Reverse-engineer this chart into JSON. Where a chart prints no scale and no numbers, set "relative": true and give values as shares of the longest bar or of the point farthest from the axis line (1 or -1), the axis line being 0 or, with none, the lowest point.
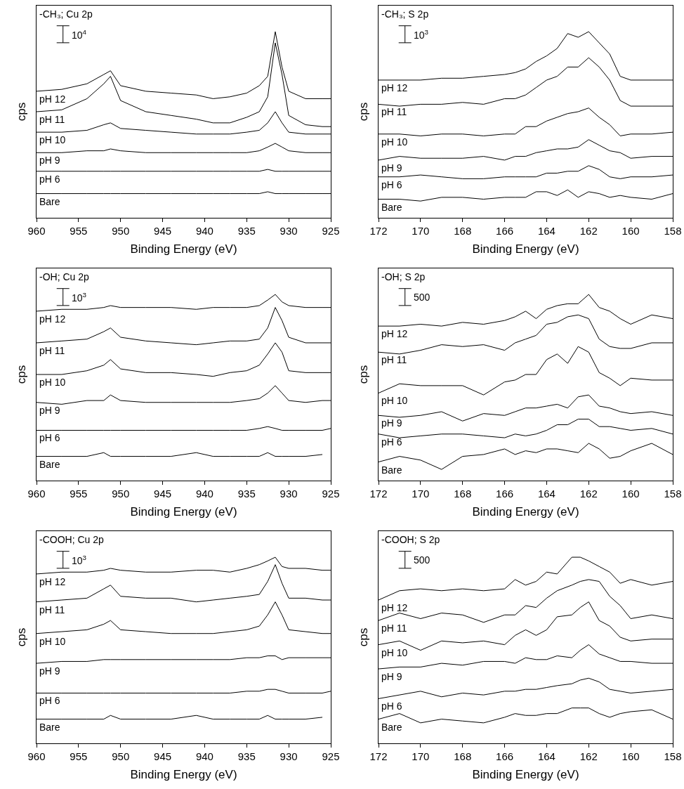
{
  "chart_data": [
    {
      "type": "line",
      "title": "-CH₃; Cu 2p",
      "xlabel": "Binding Energy (eV)",
      "ylabel": "cps",
      "relative": true,
      "xlim": [
        960,
        925
      ],
      "xticks": [
        960,
        955,
        950,
        945,
        940,
        935,
        930,
        925
      ],
      "tick_labels": "x",
      "annotations": [
        "10$^{4}$"
      ],
      "x": [
        960,
        957,
        954,
        952,
        951.2,
        950,
        947,
        944,
        941,
        939,
        937,
        935,
        933.5,
        932.5,
        931.6,
        930.8,
        930,
        928,
        926,
        925
      ],
      "series": [
        {
          "name": "pH 12",
          "color": "#000000",
          "values": [
            0.68,
            0.69,
            0.72,
            0.77,
            0.79,
            0.71,
            0.68,
            0.67,
            0.66,
            0.64,
            0.65,
            0.67,
            0.71,
            0.76,
            1.0,
            0.81,
            0.68,
            0.64,
            0.64,
            0.64
          ]
        },
        {
          "name": "pH 11",
          "color": "#000000",
          "values": [
            0.57,
            0.58,
            0.64,
            0.72,
            0.76,
            0.63,
            0.57,
            0.55,
            0.53,
            0.51,
            0.51,
            0.54,
            0.57,
            0.65,
            0.94,
            0.77,
            0.55,
            0.5,
            0.49,
            0.49
          ]
        },
        {
          "name": "pH 10",
          "color": "#000000",
          "values": [
            0.46,
            0.46,
            0.47,
            0.5,
            0.51,
            0.48,
            0.47,
            0.46,
            0.45,
            0.45,
            0.45,
            0.46,
            0.47,
            0.51,
            0.57,
            0.51,
            0.46,
            0.45,
            0.45,
            0.45
          ]
        },
        {
          "name": "pH 9",
          "color": "#000000",
          "values": [
            0.35,
            0.35,
            0.36,
            0.36,
            0.37,
            0.36,
            0.35,
            0.35,
            0.35,
            0.35,
            0.35,
            0.35,
            0.36,
            0.38,
            0.4,
            0.38,
            0.36,
            0.35,
            0.35,
            0.35
          ]
        },
        {
          "name": "pH 6",
          "color": "#000000",
          "values": [
            0.25,
            0.25,
            0.25,
            0.25,
            0.25,
            0.25,
            0.25,
            0.25,
            0.25,
            0.25,
            0.25,
            0.25,
            0.25,
            0.26,
            0.25,
            0.25,
            0.25,
            0.25,
            0.25,
            0.25
          ]
        },
        {
          "name": "Bare",
          "color": "#000000",
          "values": [
            0.13,
            0.13,
            0.13,
            0.13,
            0.13,
            0.13,
            0.13,
            0.13,
            0.13,
            0.13,
            0.13,
            0.13,
            0.13,
            0.14,
            0.13,
            0.13,
            0.13,
            0.13,
            0.13,
            0.13
          ]
        }
      ]
    },
    {
      "type": "line",
      "title": "-CH₃; S 2p",
      "xlabel": "Binding Energy (eV)",
      "ylabel": "cps",
      "relative": true,
      "xlim": [
        172,
        158
      ],
      "xticks": [
        172,
        170,
        168,
        166,
        164,
        162,
        160,
        158
      ],
      "tick_labels": "x",
      "annotations": [
        "10$^{3}$"
      ],
      "x": [
        172,
        171,
        170,
        169,
        168,
        167,
        166,
        165.5,
        165,
        164.5,
        164,
        163.5,
        163,
        162.5,
        162,
        161.5,
        161,
        160.5,
        160,
        159,
        158
      ],
      "series": [
        {
          "name": "pH 12",
          "color": "#000000",
          "values": [
            0.74,
            0.74,
            0.74,
            0.75,
            0.75,
            0.76,
            0.77,
            0.78,
            0.8,
            0.84,
            0.87,
            0.91,
            0.99,
            0.97,
            1.0,
            0.94,
            0.88,
            0.76,
            0.74,
            0.74,
            0.74
          ]
        },
        {
          "name": "pH 11",
          "color": "#000000",
          "values": [
            0.61,
            0.6,
            0.61,
            0.61,
            0.62,
            0.61,
            0.64,
            0.64,
            0.66,
            0.7,
            0.74,
            0.76,
            0.81,
            0.81,
            0.86,
            0.81,
            0.74,
            0.63,
            0.6,
            0.6,
            0.6
          ]
        },
        {
          "name": "pH 10",
          "color": "#000000",
          "values": [
            0.45,
            0.45,
            0.44,
            0.45,
            0.45,
            0.44,
            0.45,
            0.45,
            0.49,
            0.49,
            0.52,
            0.54,
            0.56,
            0.57,
            0.59,
            0.54,
            0.5,
            0.44,
            0.45,
            0.45,
            0.46
          ]
        },
        {
          "name": "pH 9",
          "color": "#000000",
          "values": [
            0.31,
            0.33,
            0.32,
            0.32,
            0.32,
            0.33,
            0.31,
            0.33,
            0.33,
            0.35,
            0.36,
            0.37,
            0.37,
            0.38,
            0.42,
            0.39,
            0.36,
            0.35,
            0.32,
            0.33,
            0.33
          ]
        },
        {
          "name": "pH 6",
          "color": "#000000",
          "values": [
            0.22,
            0.22,
            0.23,
            0.22,
            0.21,
            0.21,
            0.22,
            0.22,
            0.22,
            0.22,
            0.24,
            0.24,
            0.25,
            0.25,
            0.28,
            0.26,
            0.22,
            0.21,
            0.22,
            0.22,
            0.23
          ]
        },
        {
          "name": "Bare",
          "color": "#000000",
          "values": [
            0.1,
            0.1,
            0.09,
            0.11,
            0.11,
            0.1,
            0.11,
            0.11,
            0.11,
            0.14,
            0.14,
            0.12,
            0.15,
            0.11,
            0.14,
            0.13,
            0.11,
            0.12,
            0.11,
            0.1,
            0.13
          ]
        }
      ]
    },
    {
      "type": "line",
      "title": "-OH; Cu 2p",
      "xlabel": "Binding Energy (eV)",
      "ylabel": "cps",
      "relative": true,
      "xlim": [
        960,
        925
      ],
      "xticks": [
        960,
        955,
        950,
        945,
        940,
        935,
        930,
        925
      ],
      "tick_labels": "x",
      "annotations": [
        "10$^{3}$"
      ],
      "x": [
        960,
        957,
        954,
        952,
        951.2,
        950,
        947,
        944,
        941,
        939,
        937,
        935,
        933.5,
        932.5,
        931.6,
        930.8,
        930,
        928,
        926,
        925
      ],
      "series": [
        {
          "name": "pH 12",
          "color": "#000000",
          "values": [
            0.91,
            0.92,
            0.92,
            0.93,
            0.94,
            0.93,
            0.93,
            0.93,
            0.92,
            0.93,
            0.93,
            0.93,
            0.94,
            0.97,
            1.0,
            0.96,
            0.94,
            0.93,
            0.93,
            0.93
          ]
        },
        {
          "name": "pH 11",
          "color": "#000000",
          "values": [
            0.74,
            0.75,
            0.76,
            0.8,
            0.82,
            0.77,
            0.75,
            0.74,
            0.73,
            0.74,
            0.75,
            0.75,
            0.76,
            0.82,
            0.93,
            0.86,
            0.77,
            0.74,
            0.74,
            0.74
          ]
        },
        {
          "name": "pH 10",
          "color": "#000000",
          "values": [
            0.57,
            0.57,
            0.59,
            0.62,
            0.65,
            0.6,
            0.58,
            0.58,
            0.57,
            0.56,
            0.58,
            0.59,
            0.62,
            0.68,
            0.74,
            0.69,
            0.59,
            0.58,
            0.58,
            0.58
          ]
        },
        {
          "name": "pH 9",
          "color": "#000000",
          "values": [
            0.42,
            0.41,
            0.43,
            0.43,
            0.46,
            0.43,
            0.42,
            0.42,
            0.42,
            0.42,
            0.42,
            0.43,
            0.44,
            0.47,
            0.51,
            0.47,
            0.43,
            0.42,
            0.43,
            0.43
          ]
        },
        {
          "name": "pH 6",
          "color": "#000000",
          "values": [
            0.27,
            0.27,
            0.27,
            0.27,
            0.27,
            0.27,
            0.27,
            0.27,
            0.27,
            0.27,
            0.27,
            0.27,
            0.28,
            0.29,
            0.28,
            0.27,
            0.27,
            0.27,
            0.27,
            0.28
          ]
        },
        {
          "name": "Bare",
          "color": "#000000",
          "values": [
            0.13,
            0.13,
            0.13,
            0.15,
            0.13,
            0.13,
            0.13,
            0.13,
            0.15,
            0.13,
            0.13,
            0.13,
            0.13,
            0.15,
            0.13,
            0.13,
            0.13,
            0.13,
            0.14,
            null
          ]
        }
      ]
    },
    {
      "type": "line",
      "title": "-OH; S 2p",
      "xlabel": "Binding Energy (eV)",
      "ylabel": "cps",
      "relative": true,
      "xlim": [
        172,
        158
      ],
      "xticks": [
        172,
        170,
        168,
        166,
        164,
        162,
        160,
        158
      ],
      "tick_labels": "x",
      "annotations": [
        "500"
      ],
      "x": [
        172,
        171,
        170,
        169,
        168,
        167,
        166,
        165.5,
        165,
        164.5,
        164,
        163.5,
        163,
        162.5,
        162,
        161.5,
        161,
        160.5,
        160,
        159,
        158
      ],
      "series": [
        {
          "name": "pH 12",
          "color": "#000000",
          "values": [
            0.83,
            0.83,
            0.84,
            0.83,
            0.85,
            0.84,
            0.86,
            0.88,
            0.91,
            0.87,
            0.92,
            0.94,
            0.95,
            0.95,
            1.0,
            0.93,
            0.91,
            0.87,
            0.84,
            0.89,
            0.87
          ]
        },
        {
          "name": "pH 11",
          "color": "#000000",
          "values": [
            0.69,
            0.68,
            0.7,
            0.73,
            0.72,
            0.73,
            0.7,
            0.74,
            0.76,
            0.78,
            0.84,
            0.85,
            0.88,
            0.89,
            0.87,
            0.76,
            0.72,
            0.71,
            0.71,
            0.74,
            0.74
          ]
        },
        {
          "name": "pH 10",
          "color": "#000000",
          "values": [
            0.47,
            0.52,
            0.51,
            0.51,
            0.51,
            0.46,
            0.53,
            0.54,
            0.57,
            0.57,
            0.65,
            0.68,
            0.63,
            0.72,
            0.69,
            0.58,
            0.55,
            0.51,
            0.55,
            0.54,
            0.54
          ]
        },
        {
          "name": "pH 9",
          "color": "#000000",
          "values": [
            0.35,
            0.34,
            0.35,
            0.37,
            0.32,
            0.36,
            0.35,
            0.37,
            0.39,
            0.39,
            0.4,
            0.41,
            0.39,
            0.45,
            0.46,
            0.4,
            0.39,
            0.37,
            0.36,
            0.37,
            0.35
          ]
        },
        {
          "name": "pH 6",
          "color": "#000000",
          "values": [
            0.25,
            0.23,
            0.24,
            0.25,
            0.25,
            0.24,
            0.23,
            0.25,
            0.24,
            0.25,
            0.27,
            0.3,
            0.3,
            0.33,
            0.33,
            0.29,
            0.29,
            0.28,
            0.27,
            0.28,
            0.25
          ]
        },
        {
          "name": "Bare",
          "color": "#000000",
          "values": [
            0.1,
            0.13,
            0.11,
            0.06,
            0.13,
            0.14,
            0.17,
            0.14,
            0.16,
            0.15,
            0.17,
            0.17,
            0.16,
            0.15,
            0.2,
            0.17,
            0.12,
            0.13,
            0.16,
            0.2,
            0.14
          ]
        }
      ]
    },
    {
      "type": "line",
      "title": "-COOH; Cu 2p",
      "xlabel": "Binding Energy (eV)",
      "ylabel": "cps",
      "relative": true,
      "xlim": [
        960,
        925
      ],
      "xticks": [
        960,
        955,
        950,
        945,
        940,
        935,
        930,
        925
      ],
      "tick_labels": "x",
      "annotations": [
        "10$^{3}$"
      ],
      "x": [
        960,
        957,
        954,
        952,
        951.2,
        950,
        947,
        944,
        941,
        939,
        937,
        935,
        933.5,
        932.5,
        931.6,
        930.8,
        930,
        928,
        926,
        925
      ],
      "series": [
        {
          "name": "pH 12",
          "color": "#000000",
          "values": [
            0.91,
            0.92,
            0.92,
            0.93,
            0.94,
            0.93,
            0.92,
            0.92,
            0.93,
            0.93,
            0.92,
            0.94,
            0.96,
            0.98,
            1.0,
            0.95,
            0.94,
            0.94,
            0.93,
            0.93
          ]
        },
        {
          "name": "pH 11",
          "color": "#000000",
          "values": [
            0.76,
            0.77,
            0.78,
            0.83,
            0.85,
            0.79,
            0.78,
            0.78,
            0.76,
            0.77,
            0.78,
            0.79,
            0.8,
            0.87,
            0.96,
            0.86,
            0.78,
            0.78,
            0.77,
            0.77
          ]
        },
        {
          "name": "pH 10",
          "color": "#000000",
          "values": [
            0.59,
            0.6,
            0.61,
            0.64,
            0.66,
            0.61,
            0.6,
            0.59,
            0.59,
            0.59,
            0.6,
            0.61,
            0.63,
            0.69,
            0.76,
            0.69,
            0.61,
            0.6,
            0.59,
            0.59
          ]
        },
        {
          "name": "pH 9",
          "color": "#000000",
          "values": [
            0.43,
            0.44,
            0.44,
            0.45,
            0.45,
            0.45,
            0.45,
            0.45,
            0.45,
            0.45,
            0.45,
            0.46,
            0.46,
            0.47,
            0.47,
            0.45,
            0.46,
            0.46,
            0.46,
            0.46
          ]
        },
        {
          "name": "pH 6",
          "color": "#000000",
          "values": [
            0.27,
            0.27,
            0.27,
            0.27,
            0.27,
            0.27,
            0.27,
            0.27,
            0.27,
            0.27,
            0.27,
            0.28,
            0.28,
            0.29,
            0.29,
            0.28,
            0.27,
            0.27,
            0.27,
            0.28
          ]
        },
        {
          "name": "Bare",
          "color": "#000000",
          "values": [
            0.13,
            0.13,
            0.13,
            0.13,
            0.15,
            0.13,
            0.13,
            0.13,
            0.15,
            0.13,
            0.13,
            0.13,
            0.13,
            0.15,
            0.13,
            0.13,
            0.13,
            0.13,
            0.14,
            null
          ]
        }
      ]
    },
    {
      "type": "line",
      "title": "-COOH; S 2p",
      "xlabel": "Binding Energy (eV)",
      "ylabel": "cps",
      "relative": true,
      "xlim": [
        172,
        158
      ],
      "xticks": [
        172,
        170,
        168,
        166,
        164,
        162,
        160,
        158
      ],
      "tick_labels": "x",
      "annotations": [
        "500"
      ],
      "x": [
        172,
        171,
        170,
        169,
        168,
        167,
        166,
        165.5,
        165,
        164.5,
        164,
        163.5,
        162.8,
        162.4,
        162,
        161.5,
        161,
        160.5,
        160,
        159,
        158
      ],
      "series": [
        {
          "name": "pH 12",
          "color": "#000000",
          "values": [
            0.77,
            0.82,
            0.83,
            0.82,
            0.83,
            0.82,
            0.83,
            0.88,
            0.85,
            0.87,
            0.92,
            0.91,
            1.0,
            1.0,
            0.98,
            0.95,
            0.92,
            0.86,
            0.88,
            0.85,
            0.87
          ]
        },
        {
          "name": "pH 11",
          "color": "#000000",
          "values": [
            0.66,
            0.7,
            0.67,
            0.7,
            0.69,
            0.65,
            0.69,
            0.69,
            0.74,
            0.73,
            0.78,
            0.82,
            0.85,
            0.87,
            0.88,
            0.87,
            0.79,
            0.74,
            0.67,
            0.69,
            0.67
          ]
        },
        {
          "name": "pH 10",
          "color": "#000000",
          "values": [
            0.53,
            0.55,
            0.5,
            0.55,
            0.54,
            0.55,
            0.53,
            0.58,
            0.61,
            0.58,
            0.61,
            0.68,
            0.69,
            0.73,
            0.76,
            0.66,
            0.63,
            0.57,
            0.55,
            0.56,
            0.56
          ]
        },
        {
          "name": "pH 9",
          "color": "#000000",
          "values": [
            0.4,
            0.41,
            0.41,
            0.43,
            0.42,
            0.44,
            0.44,
            0.43,
            0.46,
            0.45,
            0.45,
            0.47,
            0.46,
            0.5,
            0.53,
            0.48,
            0.46,
            0.44,
            0.44,
            0.43,
            0.43
          ]
        },
        {
          "name": "pH 6",
          "color": "#000000",
          "values": [
            0.24,
            0.26,
            0.28,
            0.25,
            0.27,
            0.26,
            0.28,
            0.28,
            0.29,
            0.29,
            0.3,
            0.31,
            0.32,
            0.34,
            0.35,
            0.33,
            0.29,
            0.28,
            0.27,
            0.28,
            0.29
          ]
        },
        {
          "name": "Bare",
          "color": "#000000",
          "values": [
            0.13,
            0.16,
            0.11,
            0.13,
            0.12,
            0.11,
            0.14,
            0.16,
            0.15,
            0.15,
            0.16,
            0.16,
            0.19,
            0.19,
            0.19,
            0.16,
            0.14,
            0.16,
            0.17,
            0.18,
            0.13
          ]
        }
      ]
    }
  ]
}
